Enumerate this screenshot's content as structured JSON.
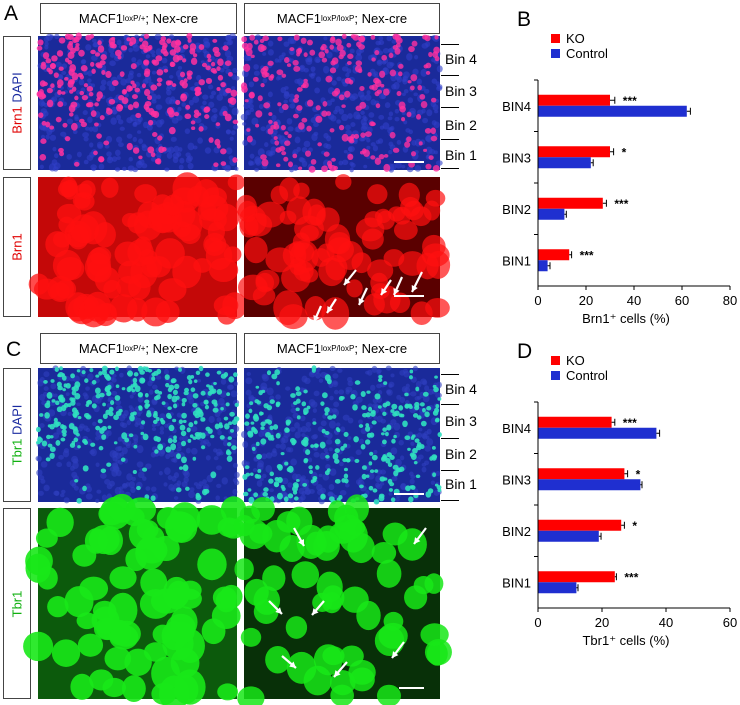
{
  "panel_letters": {
    "a": "A",
    "b": "B",
    "c": "C",
    "d": "D"
  },
  "headers": {
    "control": {
      "base": "MACF1",
      "sup": "loxP/+",
      "rest": "; Nex-cre"
    },
    "ko": {
      "base": "MACF1",
      "sup": "loxP/loxP",
      "rest": "; Nex-cre"
    }
  },
  "side_labels": {
    "brn1_dapi": {
      "marker": "Brn1",
      "dapi": "DAPI"
    },
    "brn1": "Brn1",
    "tbr1_dapi": {
      "marker": "Tbr1",
      "dapi": "DAPI"
    },
    "tbr1": "Tbr1"
  },
  "bins": [
    "Bin 4",
    "Bin 3",
    "Bin 2",
    "Bin 1"
  ],
  "colors": {
    "ko": "#ff0000",
    "control": "#1f2fd0",
    "brn1_stain": "#ff1010",
    "tbr1_stain": "#18e818",
    "dapi": "#1a2a9a"
  },
  "chart_data": [
    {
      "type": "bar",
      "orientation": "horizontal",
      "categories": [
        "BIN4",
        "BIN3",
        "BIN2",
        "BIN1"
      ],
      "series": [
        {
          "name": "KO",
          "values": [
            30,
            30,
            27,
            13
          ],
          "errors": [
            2,
            1.5,
            1.5,
            1
          ]
        },
        {
          "name": "Control",
          "values": [
            62,
            22,
            11,
            4
          ],
          "errors": [
            1.5,
            1,
            0.8,
            1
          ]
        }
      ],
      "significance": [
        "***",
        "*",
        "***",
        "***"
      ],
      "xlabel": "Brn1⁺ cells (%)",
      "xlim": [
        0,
        80
      ],
      "xticks": [
        "0",
        "20",
        "40",
        "60",
        "80"
      ],
      "legend": "top-left",
      "grid": false
    },
    {
      "type": "bar",
      "orientation": "horizontal",
      "categories": [
        "BIN4",
        "BIN3",
        "BIN2",
        "BIN1"
      ],
      "series": [
        {
          "name": "KO",
          "values": [
            23,
            27,
            26,
            24
          ],
          "errors": [
            1,
            1,
            1,
            0.5
          ]
        },
        {
          "name": "Control",
          "values": [
            37,
            32,
            19,
            12
          ],
          "errors": [
            1,
            0.5,
            0.7,
            0.5
          ]
        }
      ],
      "significance": [
        "***",
        "*",
        "*",
        "***"
      ],
      "xlabel": "Tbr1⁺ cells (%)",
      "xlim": [
        0,
        60
      ],
      "xticks": [
        "0",
        "20",
        "40",
        "60"
      ],
      "legend": "top-left",
      "grid": false
    }
  ]
}
